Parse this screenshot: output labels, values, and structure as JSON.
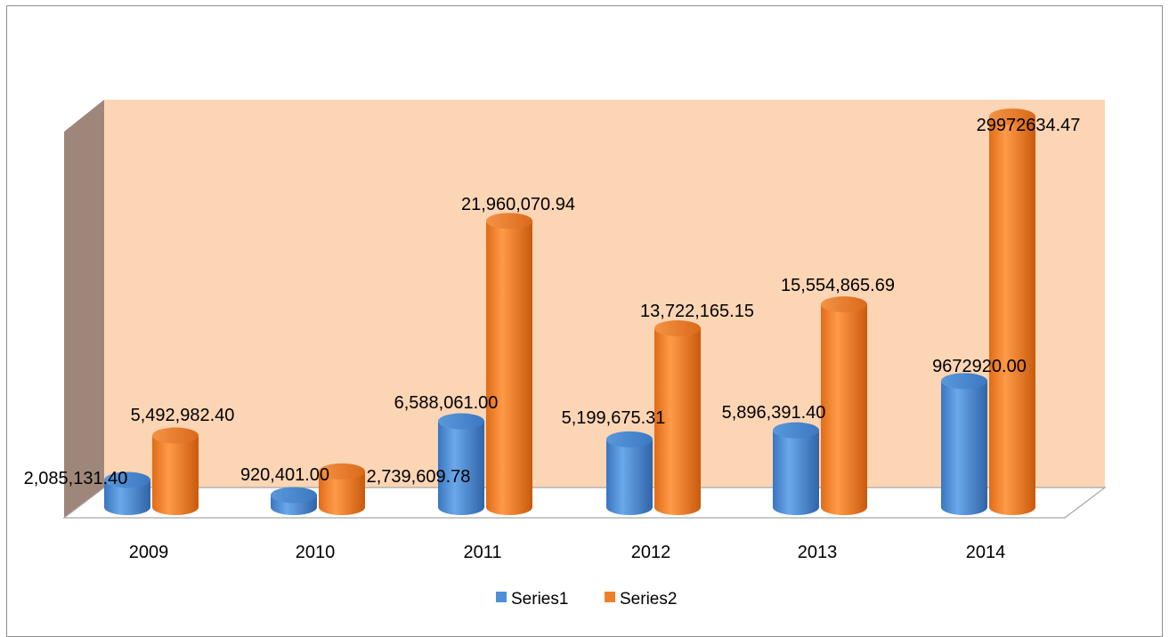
{
  "chart_data": {
    "type": "bar",
    "style": "3d-cylinder",
    "categories": [
      "2009",
      "2010",
      "2011",
      "2012",
      "2013",
      "2014"
    ],
    "series": [
      {
        "name": "Series1",
        "color": "#4f8fd6",
        "values": [
          2085131.4,
          920401.0,
          6588061.0,
          5199675.31,
          5896391.4,
          9672920.0
        ],
        "labels": [
          "2,085,131.40",
          "920,401.00",
          "6,588,061.00",
          "5,199,675.31",
          "5,896,391.40",
          "9672920.00"
        ]
      },
      {
        "name": "Series2",
        "color": "#f07f2a",
        "values": [
          5492982.4,
          2739609.78,
          21960070.94,
          13722165.15,
          15554865.69,
          29972634.47
        ],
        "labels": [
          "5,492,982.40",
          "2,739,609.78",
          "21,960,070.94",
          "13,722,165.15",
          "15,554,865.69",
          "29972634.47"
        ]
      }
    ],
    "ylim": [
      0,
      30000000
    ],
    "grid": false,
    "legend_position": "bottom",
    "back_wall_color": "#fcd5b5",
    "side_wall_color": "#9e877a"
  }
}
